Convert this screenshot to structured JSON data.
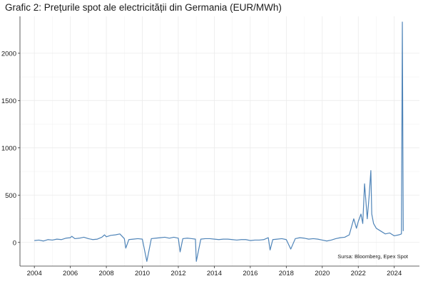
{
  "chart_data": {
    "type": "line",
    "title": "Grafic 2: Prețurile spot ale electricității din Germania (EUR/MWh)",
    "xlabel": "",
    "ylabel": "",
    "xlim": [
      2003.2,
      2025.4
    ],
    "ylim": [
      -250,
      2390
    ],
    "x_ticks": [
      2004,
      2006,
      2008,
      2010,
      2012,
      2014,
      2016,
      2018,
      2020,
      2022,
      2024
    ],
    "x_tick_labels": [
      "2004",
      "2006",
      "2008",
      "2010",
      "2012",
      "2014",
      "2016",
      "2018",
      "2020",
      "2022",
      "2024"
    ],
    "y_ticks": [
      0,
      500,
      1000,
      1500,
      2000
    ],
    "y_tick_labels": [
      "0",
      "500",
      "1000",
      "1500",
      "2000"
    ],
    "grid": true,
    "legend": "none",
    "source": "Sursa: Bloomberg, Epex Spot",
    "series_color": "#4f84b8",
    "series": [
      {
        "x": [
          2004.0,
          2004.25,
          2004.5,
          2004.75,
          2005.0,
          2005.25,
          2005.5,
          2005.75,
          2006.0,
          2006.08,
          2006.25,
          2006.5,
          2006.75,
          2007.0,
          2007.25,
          2007.5,
          2007.75,
          2007.9,
          2008.0,
          2008.25,
          2008.5,
          2008.75,
          2008.85,
          2009.0,
          2009.08,
          2009.25,
          2009.5,
          2009.75,
          2010.0,
          2010.25,
          2010.5,
          2010.75,
          2011.0,
          2011.25,
          2011.5,
          2011.75,
          2012.0,
          2012.1,
          2012.25,
          2012.5,
          2012.75,
          2012.95,
          2013.0,
          2013.25,
          2013.5,
          2013.75,
          2014.0,
          2014.25,
          2014.5,
          2014.75,
          2015.0,
          2015.25,
          2015.5,
          2015.75,
          2016.0,
          2016.25,
          2016.5,
          2016.75,
          2017.0,
          2017.1,
          2017.25,
          2017.5,
          2017.75,
          2018.0,
          2018.25,
          2018.5,
          2018.75,
          2019.0,
          2019.25,
          2019.5,
          2019.75,
          2020.0,
          2020.25,
          2020.5,
          2020.75,
          2021.0,
          2021.25,
          2021.5,
          2021.75,
          2021.9,
          2022.0,
          2022.15,
          2022.25,
          2022.35,
          2022.5,
          2022.6,
          2022.7,
          2022.75,
          2022.85,
          2023.0,
          2023.25,
          2023.5,
          2023.75,
          2024.0,
          2024.25,
          2024.4,
          2024.45,
          2024.5
        ],
        "y": [
          20,
          25,
          15,
          30,
          25,
          35,
          30,
          45,
          50,
          65,
          40,
          45,
          55,
          40,
          30,
          35,
          55,
          80,
          60,
          75,
          80,
          90,
          70,
          40,
          -60,
          30,
          35,
          40,
          35,
          -200,
          40,
          45,
          50,
          55,
          45,
          55,
          45,
          -100,
          40,
          45,
          40,
          35,
          -200,
          35,
          40,
          40,
          35,
          30,
          35,
          35,
          30,
          25,
          30,
          30,
          20,
          25,
          25,
          30,
          50,
          -80,
          30,
          35,
          40,
          30,
          -70,
          40,
          50,
          45,
          35,
          40,
          35,
          25,
          15,
          25,
          40,
          50,
          55,
          80,
          250,
          150,
          220,
          300,
          200,
          620,
          250,
          480,
          760,
          300,
          200,
          150,
          120,
          90,
          100,
          70,
          80,
          90,
          2330,
          120
        ]
      }
    ]
  }
}
